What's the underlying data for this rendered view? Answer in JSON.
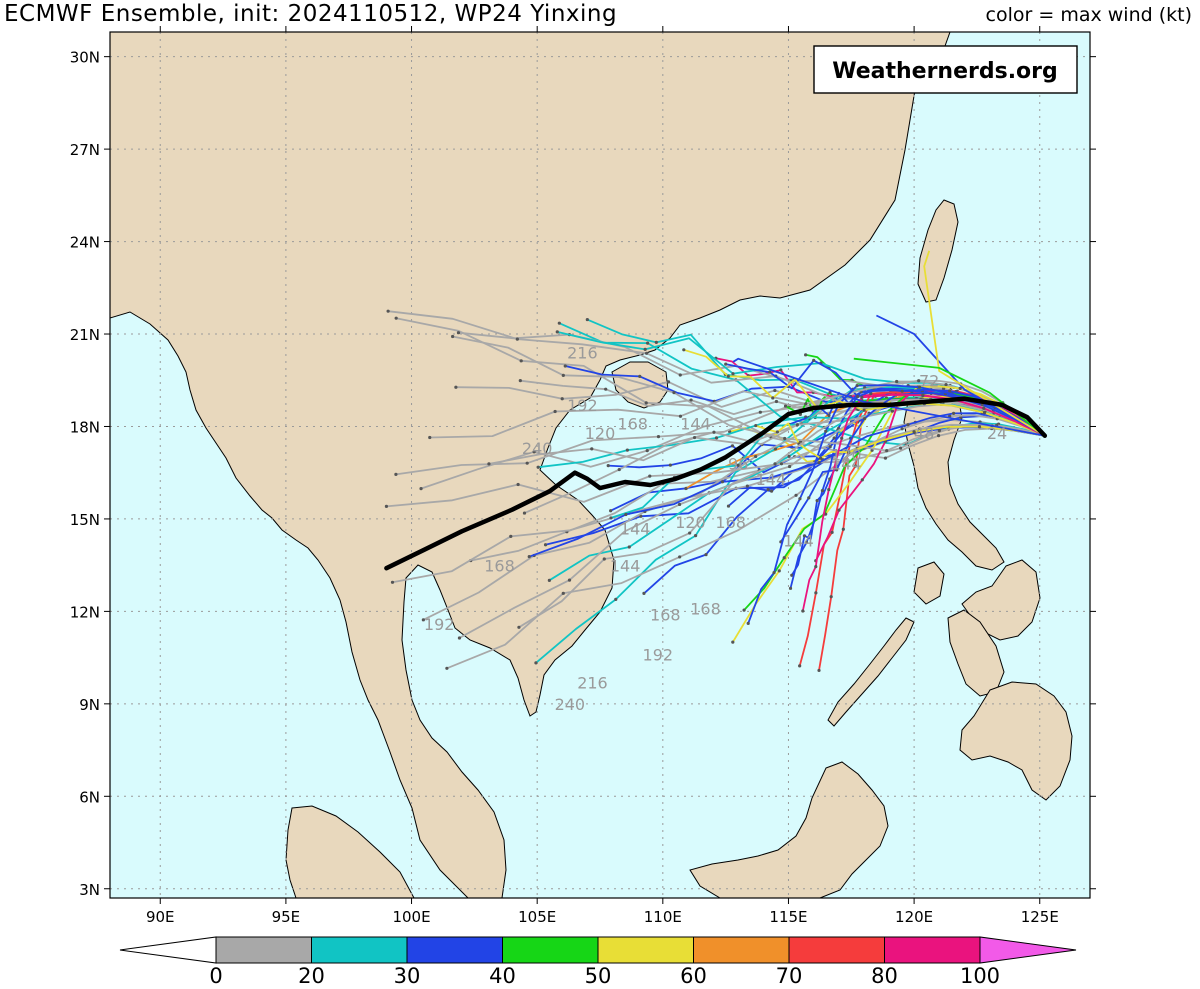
{
  "header": {
    "title": "ECMWF Ensemble, init: 2024110512, WP24 Yinxing",
    "subtitle": "color = max wind (kt)"
  },
  "watermark": {
    "text": "Weathernerds.org"
  },
  "map": {
    "region": "South China Sea / Southeast Asia",
    "extent": {
      "lon": [
        88,
        127
      ],
      "lat": [
        2.7,
        30.8
      ]
    },
    "lat_ticks": [
      "30N",
      "27N",
      "24N",
      "21N",
      "18N",
      "15N",
      "12N",
      "9N",
      "6N",
      "3N"
    ],
    "lon_ticks": [
      "90E",
      "95E",
      "100E",
      "105E",
      "110E",
      "115E",
      "120E",
      "125E"
    ],
    "colors": {
      "ocean": "#d9fbfd",
      "land": "#e8d8bd",
      "grid": "#9a9a9a",
      "mean_track": "#000000"
    }
  },
  "chart_data": {
    "type": "map",
    "title": "ECMWF Ensemble, init: 2024110512, WP24 Yinxing",
    "mean_track": {
      "points": [
        [
          125.2,
          17.7
        ],
        [
          124.5,
          18.3
        ],
        [
          123.5,
          18.7
        ],
        [
          122,
          18.9
        ],
        [
          120.5,
          18.8
        ],
        [
          119,
          18.7
        ],
        [
          117.5,
          18.7
        ],
        [
          116,
          18.6
        ],
        [
          115,
          18.4
        ],
        [
          114,
          17.8
        ],
        [
          112.5,
          17
        ],
        [
          111.5,
          16.6
        ],
        [
          110.5,
          16.3
        ],
        [
          109.5,
          16.1
        ],
        [
          108.5,
          16.2
        ],
        [
          107.5,
          16
        ],
        [
          107,
          16.3
        ],
        [
          106.5,
          16.5
        ],
        [
          105.5,
          15.9
        ],
        [
          104,
          15.3
        ],
        [
          102,
          14.6
        ],
        [
          100.5,
          14
        ],
        [
          99,
          13.4
        ]
      ]
    },
    "time_labels": [
      {
        "text": "216",
        "lon": 106.8,
        "lat": 20.2
      },
      {
        "text": "192",
        "lon": 106.8,
        "lat": 18.5
      },
      {
        "text": "168",
        "lon": 108.8,
        "lat": 17.9
      },
      {
        "text": "144",
        "lon": 111.3,
        "lat": 17.9
      },
      {
        "text": "120",
        "lon": 107.5,
        "lat": 17.6
      },
      {
        "text": "240",
        "lon": 105.0,
        "lat": 17.1
      },
      {
        "text": "96",
        "lon": 113.0,
        "lat": 16.6
      },
      {
        "text": "144",
        "lon": 114.3,
        "lat": 16.1
      },
      {
        "text": "120",
        "lon": 117.3,
        "lat": 16.9
      },
      {
        "text": "144",
        "lon": 117.3,
        "lat": 16.6
      },
      {
        "text": "72",
        "lon": 120.6,
        "lat": 19.3
      },
      {
        "text": "48",
        "lon": 120.4,
        "lat": 17.6
      },
      {
        "text": "24",
        "lon": 123.3,
        "lat": 17.6
      },
      {
        "text": "144",
        "lon": 108.9,
        "lat": 14.5
      },
      {
        "text": "120",
        "lon": 111.1,
        "lat": 14.7
      },
      {
        "text": "168",
        "lon": 112.7,
        "lat": 14.7
      },
      {
        "text": "144",
        "lon": 115.4,
        "lat": 14.1
      },
      {
        "text": "168",
        "lon": 103.5,
        "lat": 13.3
      },
      {
        "text": "144",
        "lon": 108.5,
        "lat": 13.3
      },
      {
        "text": "168",
        "lon": 110.1,
        "lat": 11.7
      },
      {
        "text": "168",
        "lon": 111.7,
        "lat": 11.9
      },
      {
        "text": "192",
        "lon": 101.1,
        "lat": 11.4
      },
      {
        "text": "192",
        "lon": 109.8,
        "lat": 10.4
      },
      {
        "text": "216",
        "lon": 107.2,
        "lat": 9.5
      },
      {
        "text": "240",
        "lon": 106.3,
        "lat": 8.8
      }
    ],
    "colorbar": {
      "label": "max wind (kt)",
      "ticks": [
        "0",
        "20",
        "30",
        "40",
        "50",
        "60",
        "70",
        "80",
        "100"
      ],
      "bins": [
        {
          "range": "0-20",
          "color": "#a8a8a8"
        },
        {
          "range": "20-30",
          "color": "#11c4c4"
        },
        {
          "range": "30-40",
          "color": "#2244e6"
        },
        {
          "range": "40-50",
          "color": "#16d616"
        },
        {
          "range": "50-60",
          "color": "#e8de36"
        },
        {
          "range": "60-70",
          "color": "#f0902a"
        },
        {
          "range": "70-80",
          "color": "#f53c3c"
        },
        {
          "range": "80-100",
          "color": "#ea137e"
        }
      ],
      "under_color": "#ffffff",
      "over_color": "#f25ae8"
    }
  }
}
